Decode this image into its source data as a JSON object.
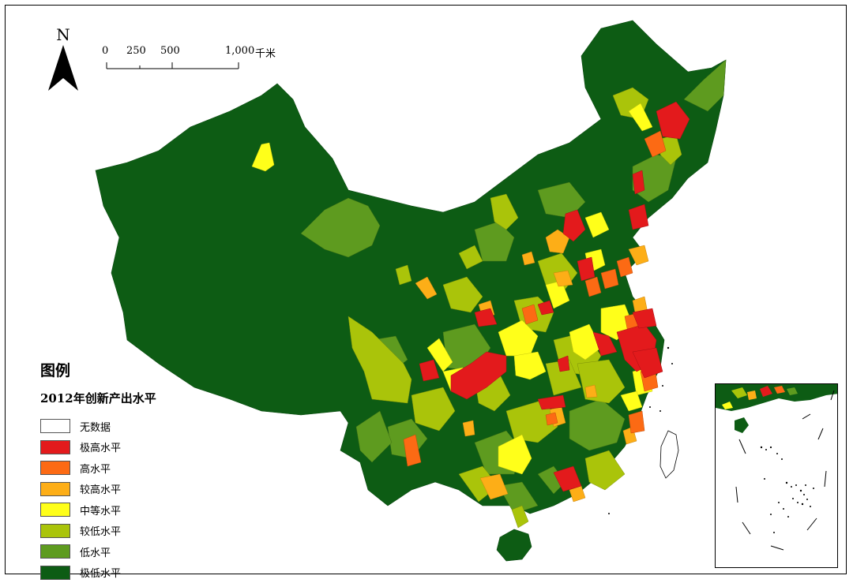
{
  "north": {
    "letter": "N"
  },
  "scale_bar": {
    "ticks": [
      "0",
      "250",
      "500",
      "1,000"
    ],
    "unit": "千米"
  },
  "legend": {
    "title": "图例",
    "subtitle": "2012年创新产出水平",
    "items": [
      {
        "label": "无数据",
        "color": "#ffffff"
      },
      {
        "label": "极高水平",
        "color": "#e31a1c"
      },
      {
        "label": "高水平",
        "color": "#fc6a14"
      },
      {
        "label": "较高水平",
        "color": "#fdae17"
      },
      {
        "label": "中等水平",
        "color": "#ffff1a"
      },
      {
        "label": "较低水平",
        "color": "#aac40a"
      },
      {
        "label": "低水平",
        "color": "#5e9b1f"
      },
      {
        "label": "极低水平",
        "color": "#0d5c14"
      }
    ]
  }
}
